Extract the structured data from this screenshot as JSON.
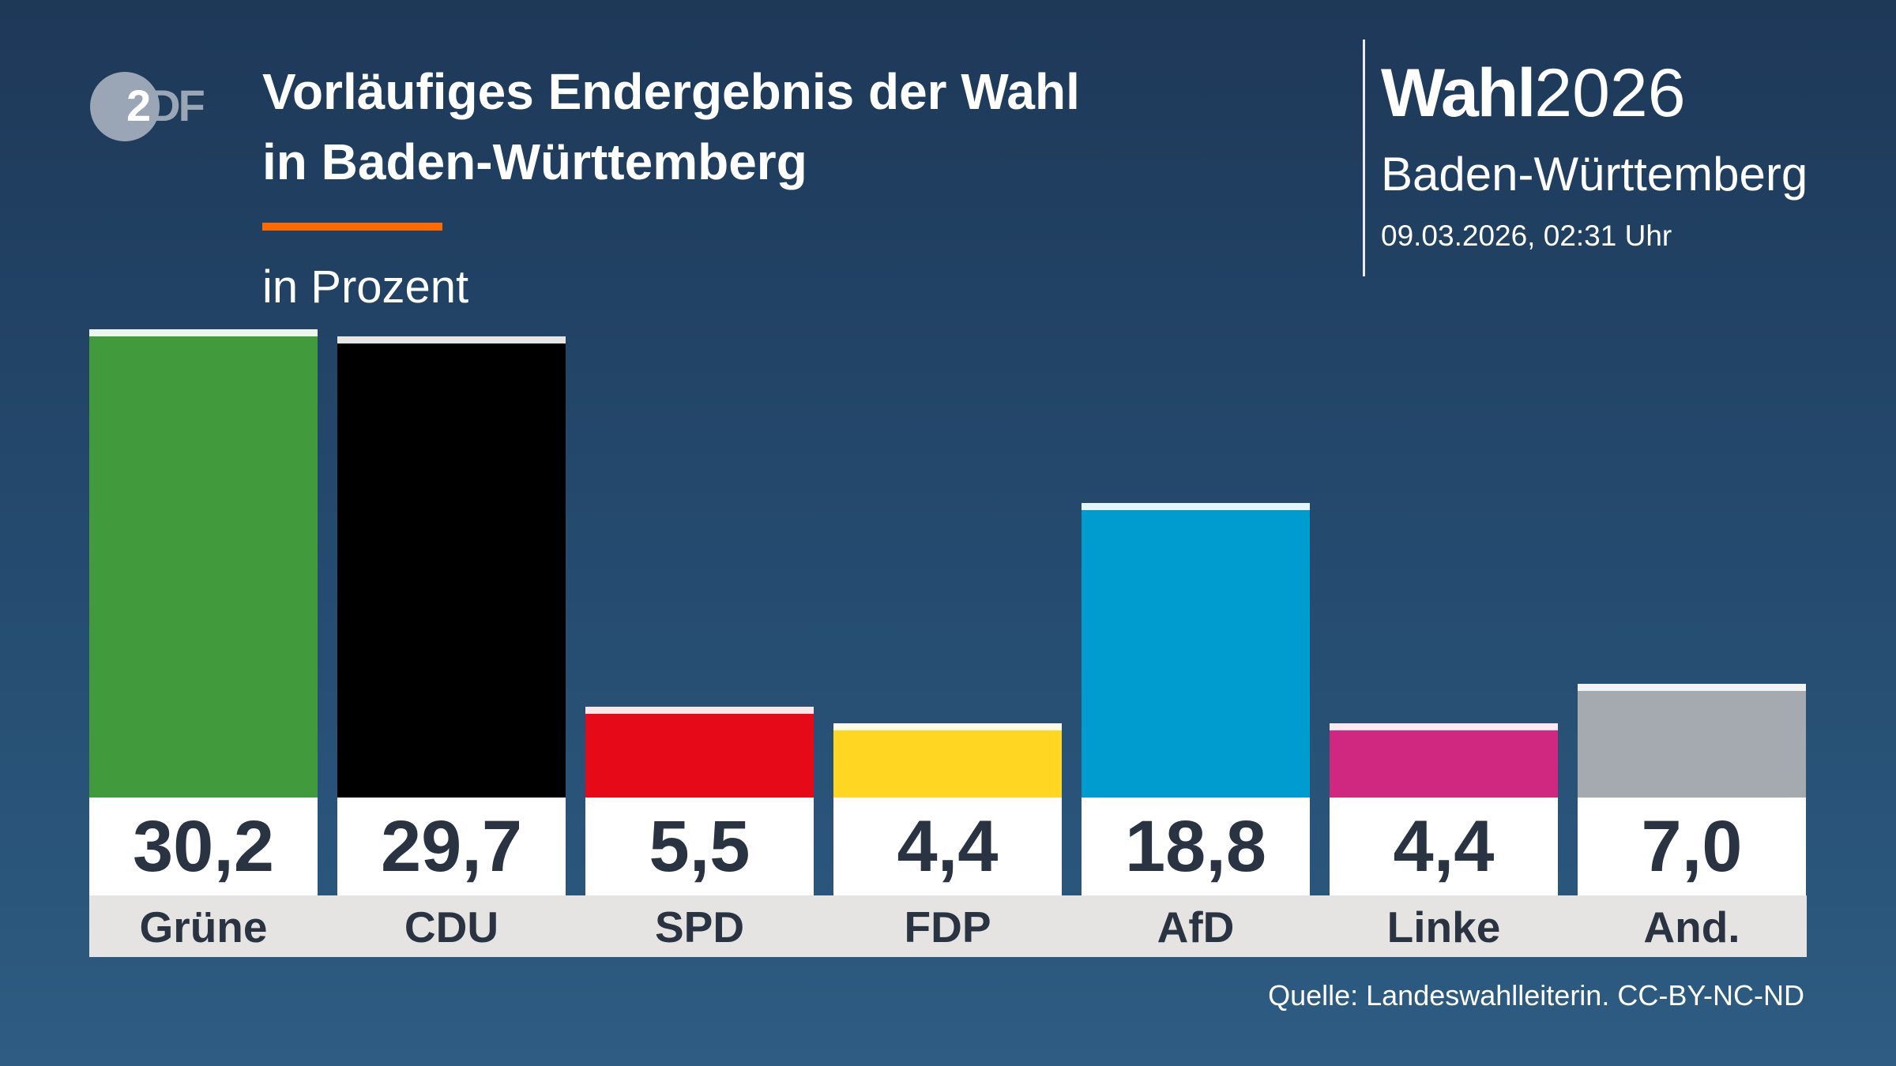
{
  "logo": {
    "text": "ZDF"
  },
  "header": {
    "title_line1": "Vorläufiges Endergebnis der Wahl",
    "title_line2": "in Baden-Württemberg",
    "unit": "in Prozent",
    "accent_color": "#ff6a00"
  },
  "brand": {
    "word": "Wahl",
    "year": "2026",
    "region": "Baden-Württemberg",
    "timestamp": "09.03.2026, 02:31 Uhr"
  },
  "source": "Quelle: Landeswahlleiterin. CC-BY-NC-ND",
  "chart_data": {
    "type": "bar",
    "title": "Vorläufiges Endergebnis der Wahl in Baden-Württemberg",
    "ylabel": "in Prozent",
    "categories": [
      "Grüne",
      "CDU",
      "SPD",
      "FDP",
      "AfD",
      "Linke",
      "And."
    ],
    "values": [
      30.2,
      29.7,
      5.5,
      4.4,
      18.8,
      4.4,
      7.0
    ],
    "value_labels": [
      "30,2",
      "29,7",
      "5,5",
      "4,4",
      "18,8",
      "4,4",
      "7,0"
    ],
    "colors": [
      "#419a3c",
      "#000000",
      "#e60a18",
      "#ffd621",
      "#009ccf",
      "#d02780",
      "#a5a9b0"
    ],
    "cap_colors": [
      "#eef5ec",
      "#e6e6e6",
      "#fde6e8",
      "#fffbe8",
      "#e6f5fa",
      "#fbe9f2",
      "#f2f3f4"
    ],
    "ylim": [
      0,
      30.2
    ],
    "grid": false
  }
}
